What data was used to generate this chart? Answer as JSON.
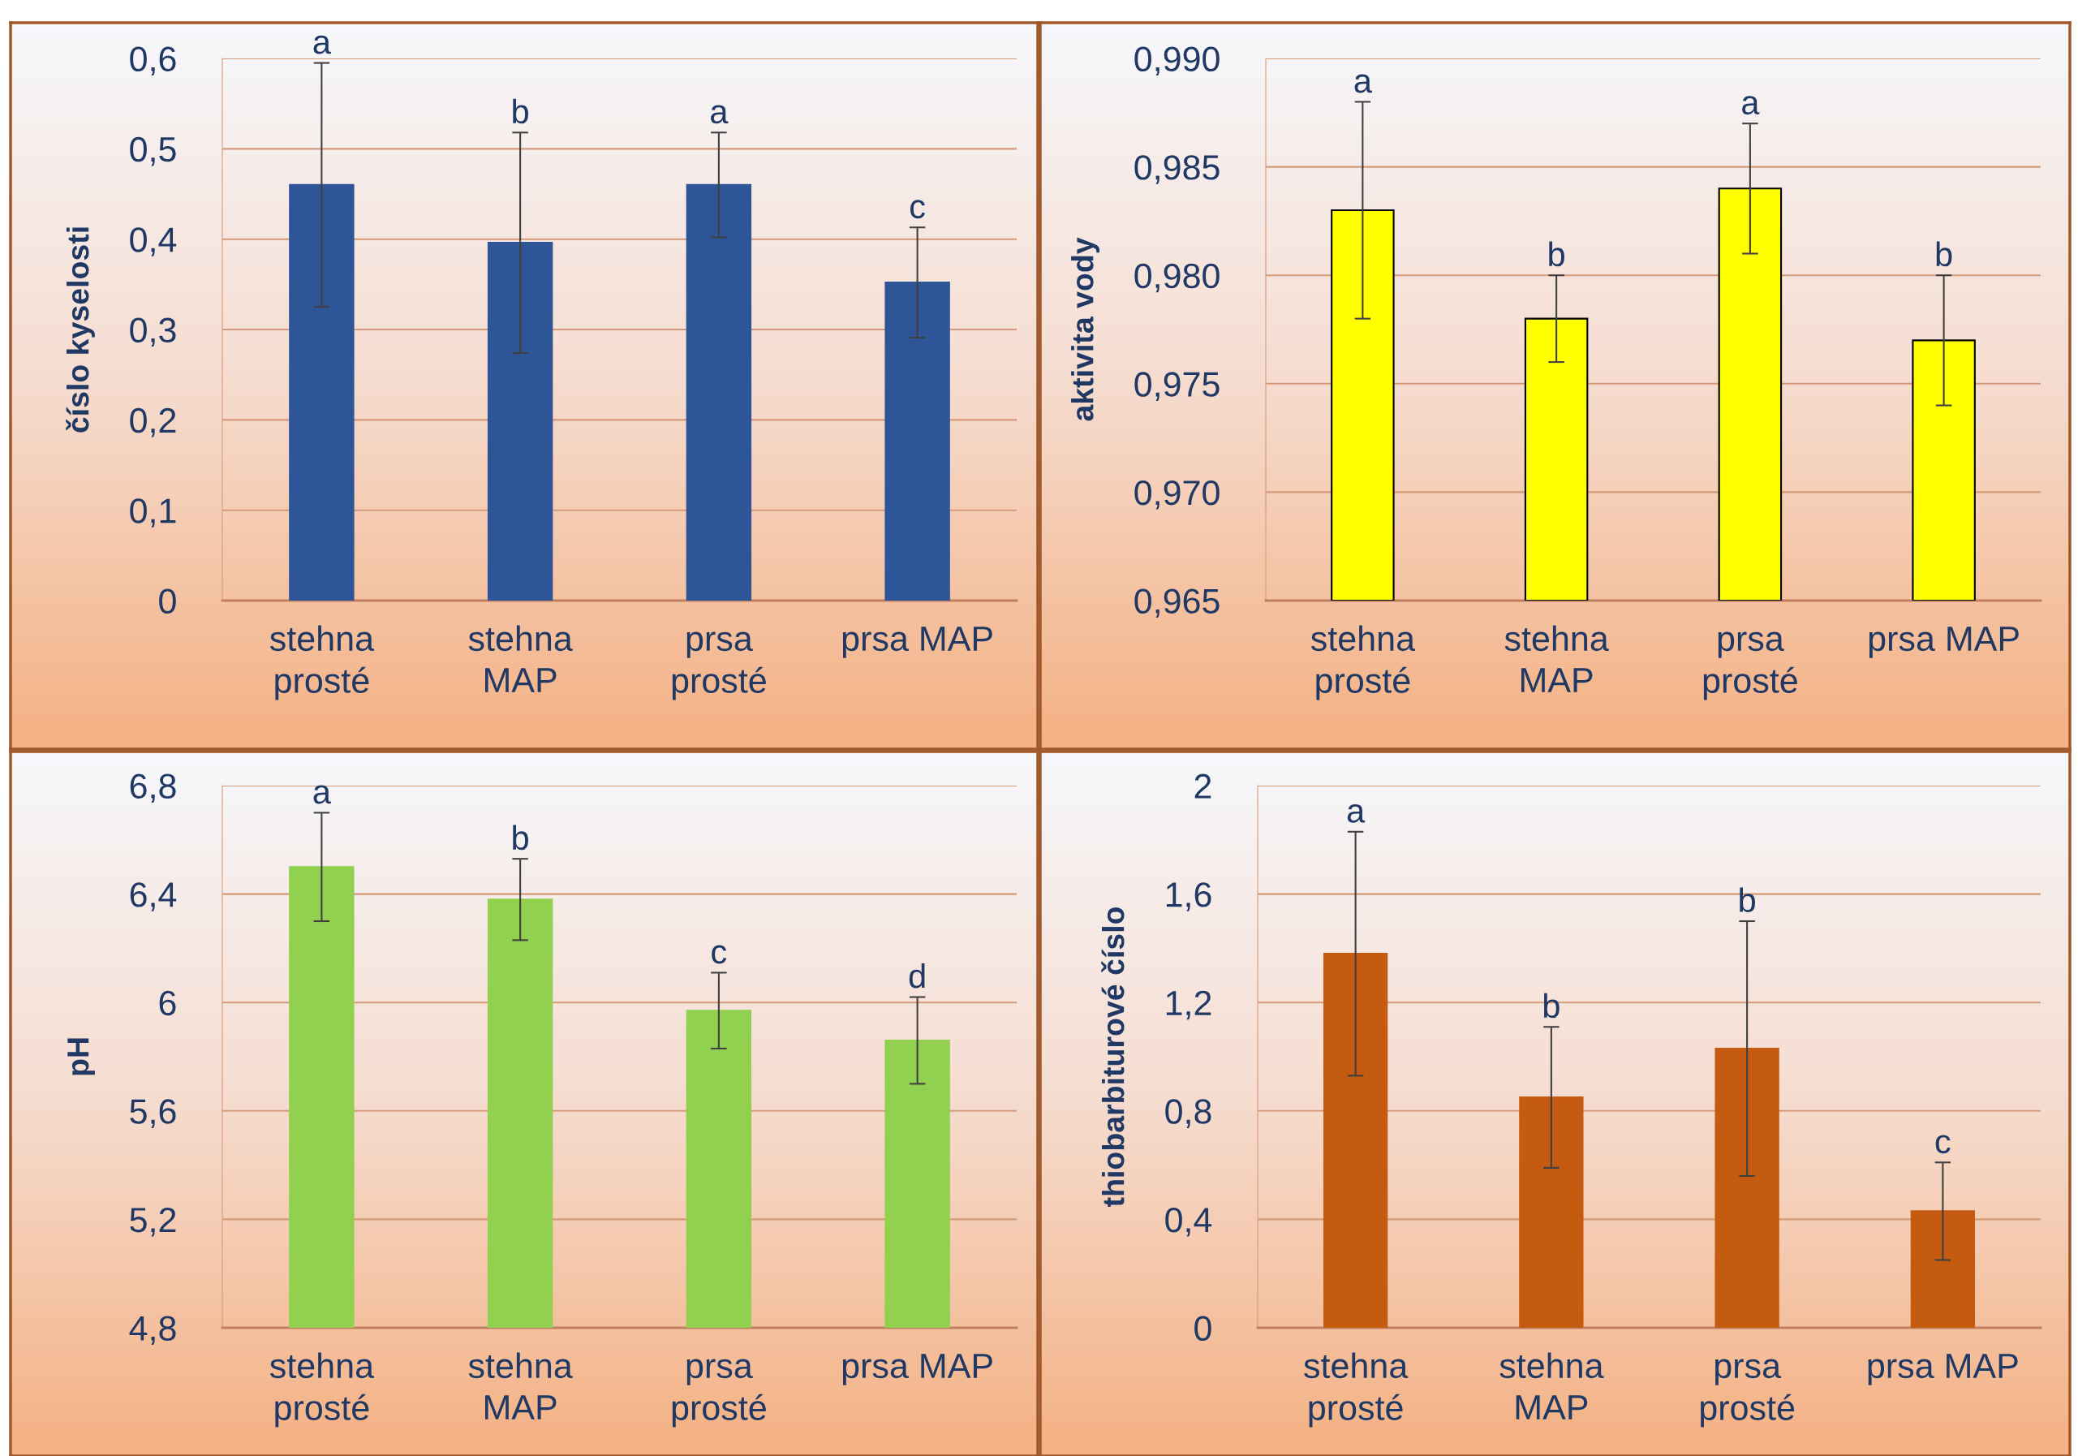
{
  "chart_data": [
    {
      "type": "bar",
      "ylabel": "číslo kyselosti",
      "categories": [
        "stehna\nprosté",
        "stehna\nMAP",
        "prsa\nprosté",
        "prsa MAP"
      ],
      "values": [
        0.46,
        0.396,
        0.46,
        0.352
      ],
      "errors": [
        0.135,
        0.122,
        0.058,
        0.061
      ],
      "color": "#2e5597",
      "ylim": [
        0,
        0.6
      ],
      "yticks": [
        0,
        {
          "value": 0.1,
          "label": "0,1"
        },
        {
          "value": 0.2,
          "label": "0,2"
        },
        {
          "value": 0.3,
          "label": "0,3"
        },
        {
          "value": 0.4,
          "label": "0,4"
        },
        {
          "value": 0.5,
          "label": "0,5"
        },
        {
          "value": 0.6,
          "label": "0,6"
        }
      ],
      "grid": "y",
      "annotations": [
        {
          "text": "a",
          "x": "stehna\nprosté",
          "y": 0.595
        },
        {
          "text": "b",
          "x": "stehna\nMAP",
          "y": 0.518
        },
        {
          "text": "a",
          "x": "prsa\nprosté",
          "y": 0.518
        },
        {
          "text": "c",
          "x": "prsa MAP",
          "y": 0.413
        }
      ]
    },
    {
      "type": "bar",
      "ylabel": "aktivita vody",
      "categories": [
        "stehna\nprosté",
        "stehna\nMAP",
        "prsa\nprosté",
        "prsa MAP"
      ],
      "values": [
        0.983,
        0.978,
        0.984,
        0.977
      ],
      "errors": [
        0.005,
        0.002,
        0.003,
        0.003
      ],
      "color": "#ffff00",
      "ylim": [
        0.965,
        0.99
      ],
      "yticks": [
        {
          "value": 0.965,
          "label": "0,965"
        },
        {
          "value": 0.97,
          "label": "0,970"
        },
        {
          "value": 0.975,
          "label": "0,975"
        },
        {
          "value": 0.98,
          "label": "0,980"
        },
        {
          "value": 0.985,
          "label": "0,985"
        },
        {
          "value": 0.99,
          "label": "0,990"
        }
      ],
      "grid": "y",
      "annotations": [
        {
          "text": "a",
          "x": "stehna\nprosté",
          "y": 0.988
        },
        {
          "text": "b",
          "x": "stehna\nMAP",
          "y": 0.98
        },
        {
          "text": "a",
          "x": "prsa\nprosté",
          "y": 0.987
        },
        {
          "text": "b",
          "x": "prsa MAP",
          "y": 0.98
        }
      ]
    },
    {
      "type": "bar",
      "ylabel": "pH",
      "categories": [
        "stehna\nprosté",
        "stehna\nMAP",
        "prsa\nprosté",
        "prsa MAP"
      ],
      "values": [
        6.5,
        6.38,
        5.97,
        5.86
      ],
      "errors": [
        0.2,
        0.15,
        0.14,
        0.16
      ],
      "color": "#92d050",
      "ylim": [
        4.8,
        6.8
      ],
      "yticks": [
        {
          "value": 4.8,
          "label": "4,8"
        },
        {
          "value": 5.2,
          "label": "5,2"
        },
        {
          "value": 5.6,
          "label": "5,6"
        },
        6,
        {
          "value": 6.4,
          "label": "6,4"
        },
        {
          "value": 6.8,
          "label": "6,8"
        }
      ],
      "grid": "y",
      "annotations": [
        {
          "text": "a",
          "x": "stehna\nprosté",
          "y": 6.7
        },
        {
          "text": "b",
          "x": "stehna\nMAP",
          "y": 6.53
        },
        {
          "text": "c",
          "x": "prsa\nprosté",
          "y": 6.11
        },
        {
          "text": "d",
          "x": "prsa MAP",
          "y": 6.02
        }
      ]
    },
    {
      "type": "bar",
      "ylabel": "thiobarbiturové číslo",
      "categories": [
        "stehna\nprosté",
        "stehna\nMAP",
        "prsa\nprosté",
        "prsa MAP"
      ],
      "values": [
        1.38,
        0.85,
        1.03,
        0.43
      ],
      "errors": [
        0.45,
        0.26,
        0.47,
        0.18
      ],
      "color": "#c55a11",
      "ylim": [
        0,
        2
      ],
      "yticks": [
        0,
        {
          "value": 0.4,
          "label": "0,4"
        },
        {
          "value": 0.8,
          "label": "0,8"
        },
        {
          "value": 1.2,
          "label": "1,2"
        },
        {
          "value": 1.6,
          "label": "1,6"
        },
        2
      ],
      "grid": "y",
      "annotations": [
        {
          "text": "a",
          "x": "stehna\nprosté",
          "y": 1.83
        },
        {
          "text": "b",
          "x": "stehna\nMAP",
          "y": 1.11
        },
        {
          "text": "b",
          "x": "prsa\nprosté",
          "y": 1.5
        },
        {
          "text": "c",
          "x": "prsa MAP",
          "y": 0.61
        }
      ]
    }
  ]
}
